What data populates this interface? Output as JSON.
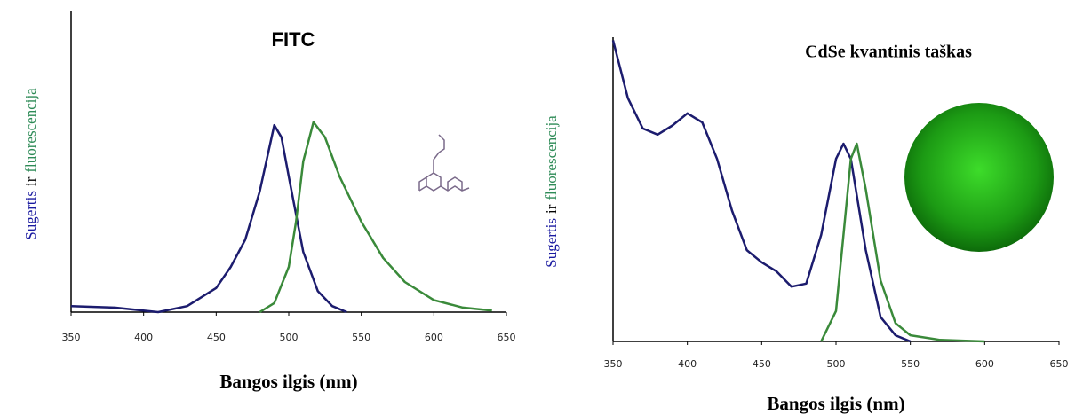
{
  "chart_data": [
    {
      "type": "line",
      "title": "FITC",
      "xlabel": "Bangos ilgis (nm)",
      "ylabel_parts": [
        "Sugertis",
        "ir",
        "fluorescencija"
      ],
      "ylabel_colors": [
        "#1a1aa0",
        "#000000",
        "#2e8b57"
      ],
      "xlim": [
        350,
        650
      ],
      "xticks": [
        350,
        400,
        450,
        500,
        550,
        600,
        650
      ],
      "ylim": [
        0,
        1
      ],
      "series": [
        {
          "color": "#1c1c6e",
          "x": [
            350,
            380,
            410,
            430,
            450,
            460,
            470,
            480,
            490,
            495,
            500,
            510,
            520,
            530,
            540
          ],
          "values": [
            0.02,
            0.015,
            0.0,
            0.02,
            0.08,
            0.15,
            0.24,
            0.4,
            0.62,
            0.58,
            0.45,
            0.2,
            0.07,
            0.02,
            0.0
          ]
        },
        {
          "color": "#3a8a3a",
          "x": [
            480,
            490,
            500,
            505,
            510,
            517,
            525,
            535,
            550,
            565,
            580,
            600,
            620,
            640
          ],
          "values": [
            0.0,
            0.03,
            0.15,
            0.3,
            0.5,
            0.63,
            0.58,
            0.45,
            0.3,
            0.18,
            0.1,
            0.04,
            0.015,
            0.005
          ]
        }
      ]
    },
    {
      "type": "line",
      "title": "CdSe kvantinis taškas",
      "xlabel": "Bangos ilgis (nm)",
      "ylabel_parts": [
        "Sugertis",
        "ir",
        "fluorescencija"
      ],
      "ylabel_colors": [
        "#1a1aa0",
        "#000000",
        "#2e8b57"
      ],
      "xlim": [
        350,
        650
      ],
      "xticks": [
        350,
        400,
        450,
        500,
        550,
        600,
        650
      ],
      "ylim": [
        0,
        1
      ],
      "series": [
        {
          "color": "#1c1c6e",
          "x": [
            350,
            360,
            370,
            380,
            390,
            400,
            410,
            420,
            430,
            440,
            450,
            460,
            470,
            480,
            490,
            500,
            505,
            510,
            520,
            530,
            540,
            550
          ],
          "values": [
            0.99,
            0.8,
            0.7,
            0.68,
            0.71,
            0.75,
            0.72,
            0.6,
            0.43,
            0.3,
            0.26,
            0.23,
            0.18,
            0.19,
            0.35,
            0.6,
            0.65,
            0.6,
            0.3,
            0.08,
            0.02,
            0.0
          ]
        },
        {
          "color": "#3a8a3a",
          "x": [
            490,
            500,
            505,
            510,
            514,
            520,
            530,
            540,
            550,
            570,
            600
          ],
          "values": [
            0.0,
            0.1,
            0.35,
            0.6,
            0.65,
            0.5,
            0.2,
            0.06,
            0.02,
            0.005,
            0.0
          ]
        }
      ]
    }
  ]
}
